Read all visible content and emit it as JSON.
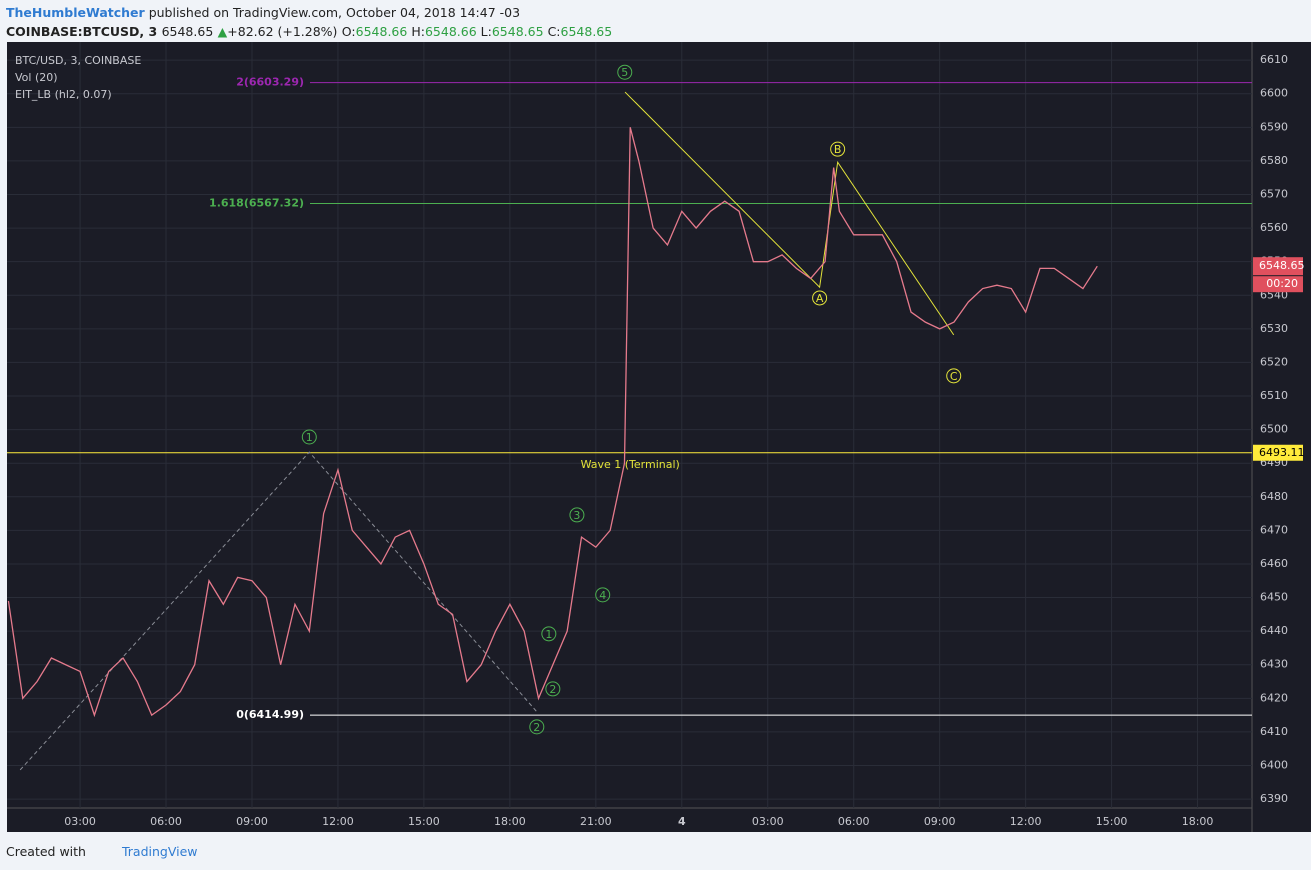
{
  "header": {
    "author": "TheHumbleWatcher",
    "published": "published on TradingView.com, October 04, 2018 14:47 -03",
    "symbol": "COINBASE:BTCUSD, 3",
    "last": "6548.65",
    "arrow": "▲",
    "change": "+82.62 (+1.28%)",
    "ohlc": [
      {
        "label": "O:",
        "value": "6548.66"
      },
      {
        "label": "H:",
        "value": "6548.66"
      },
      {
        "label": "L:",
        "value": "6548.65"
      },
      {
        "label": "C:",
        "value": "6548.65"
      }
    ]
  },
  "legend": [
    "BTC/USD, 3, COINBASE",
    "Vol (20)",
    "EIT_LB (hl2, 0.07)"
  ],
  "footer": {
    "created": "Created with",
    "brand": "TradingView"
  },
  "chart_data": {
    "type": "line",
    "x": [
      0.5,
      1,
      1.5,
      2,
      2.5,
      3,
      3.5,
      4,
      4.5,
      5,
      5.5,
      6,
      6.5,
      7,
      7.5,
      8,
      8.5,
      9,
      9.5,
      10,
      10.5,
      11,
      11.5,
      12,
      12.5,
      13,
      13.5,
      14,
      14.5,
      15,
      15.5,
      16,
      16.5,
      17,
      17.5,
      18,
      18.5,
      19,
      19.5,
      20,
      20.5,
      21,
      21.5,
      22,
      22.2,
      22.5,
      23,
      23.5,
      24,
      24.5,
      25,
      25.5,
      26,
      26.5,
      27,
      27.5,
      28,
      28.5,
      29,
      29.3,
      29.5,
      30,
      30.5,
      31,
      31.5,
      32,
      32.5,
      33,
      33.5,
      34,
      34.5,
      35,
      35.5,
      36,
      36.5,
      37,
      37.5,
      38,
      38.5
    ],
    "series": [
      {
        "name": "BTC/USD, 3, COINBASE",
        "color": "#e57a8c",
        "values": [
          6449,
          6420,
          6425,
          6432,
          6430,
          6428,
          6415,
          6428,
          6432,
          6425,
          6415,
          6418,
          6422,
          6430,
          6455,
          6448,
          6456,
          6455,
          6450,
          6430,
          6448,
          6440,
          6475,
          6488,
          6470,
          6465,
          6460,
          6468,
          6470,
          6460,
          6448,
          6445,
          6425,
          6430,
          6440,
          6448,
          6440,
          6420,
          6430,
          6440,
          6468,
          6465,
          6470,
          6490,
          6590,
          6580,
          6560,
          6555,
          6565,
          6560,
          6565,
          6568,
          6565,
          6550,
          6550,
          6552,
          6548,
          6545,
          6550,
          6578,
          6565,
          6558,
          6558,
          6558,
          6550,
          6535,
          6532,
          6530,
          6532,
          6538,
          6542,
          6543,
          6542,
          6535,
          6548,
          6548,
          6545,
          6542,
          6548.65
        ]
      }
    ],
    "xlim": [
      0.45,
      43.9
    ],
    "ylim": [
      6380.2,
      6615.4
    ],
    "xticks": [
      {
        "value": 3,
        "label": "03:00"
      },
      {
        "value": 6,
        "label": "06:00"
      },
      {
        "value": 9,
        "label": "09:00"
      },
      {
        "value": 12,
        "label": "12:00"
      },
      {
        "value": 15,
        "label": "15:00"
      },
      {
        "value": 18,
        "label": "18:00"
      },
      {
        "value": 21,
        "label": "21:00"
      },
      {
        "value": 24,
        "label": "4"
      },
      {
        "value": 27,
        "label": "03:00"
      },
      {
        "value": 30,
        "label": "06:00"
      },
      {
        "value": 33,
        "label": "09:00"
      },
      {
        "value": 36,
        "label": "12:00"
      },
      {
        "value": 39,
        "label": "15:00"
      },
      {
        "value": 42,
        "label": "18:00"
      }
    ],
    "yticks": [
      6390,
      6400,
      6410,
      6420,
      6430,
      6440,
      6450,
      6460,
      6470,
      6480,
      6490,
      6500,
      6510,
      6520,
      6530,
      6540,
      6550,
      6560,
      6570,
      6580,
      6590,
      6600,
      6610
    ],
    "grid": true,
    "levels": [
      {
        "label": "2(6603.29)",
        "value": 6603.29,
        "color": "#9c27b0"
      },
      {
        "label": "1.618(6567.32)",
        "value": 6567.32,
        "color": "#4caf50"
      },
      {
        "label": "6493.11",
        "value": 6493.11,
        "color": "#ffeb3b"
      },
      {
        "label": "0(6414.99)",
        "value": 6414.99,
        "color": "#ffffff"
      }
    ],
    "annotation": {
      "text": "Wave 1 (Terminal)",
      "x": 22.2,
      "y": 6490
    },
    "trend_lines": [
      {
        "color": "#e3e33a",
        "dashed": false,
        "x": [
          22.02,
          28.81,
          29.44,
          33.49
        ],
        "y": [
          6600.5,
          6542.4,
          6579.6,
          6528.2
        ]
      },
      {
        "color": "#8a8d96",
        "dashed": true,
        "x": [
          0.91,
          11,
          18.94
        ],
        "y": [
          6398.7,
          6493.3,
          6416
        ]
      }
    ],
    "wave_labels": [
      {
        "text": "5",
        "color": "#4caf50",
        "x": 22.01,
        "y": 6606.4
      },
      {
        "text": "1",
        "color": "#4caf50",
        "x": 11,
        "y": 6497.8
      },
      {
        "text": "3",
        "color": "#4caf50",
        "x": 20.34,
        "y": 6474.6
      },
      {
        "text": "4",
        "color": "#4caf50",
        "x": 21.24,
        "y": 6450.8
      },
      {
        "text": "1",
        "color": "#4caf50",
        "x": 19.36,
        "y": 6439.2
      },
      {
        "text": "2",
        "color": "#4caf50",
        "x": 19.5,
        "y": 6422.8
      },
      {
        "text": "2",
        "color": "#4caf50",
        "x": 18.94,
        "y": 6411.5
      },
      {
        "text": "A",
        "color": "#e3e33a",
        "x": 28.81,
        "y": 6539.2
      },
      {
        "text": "B",
        "color": "#e3e33a",
        "x": 29.44,
        "y": 6583.5
      },
      {
        "text": "C",
        "color": "#e3e33a",
        "x": 33.49,
        "y": 6516
      }
    ],
    "last_price": 6548.65,
    "countdown": "00:20"
  }
}
